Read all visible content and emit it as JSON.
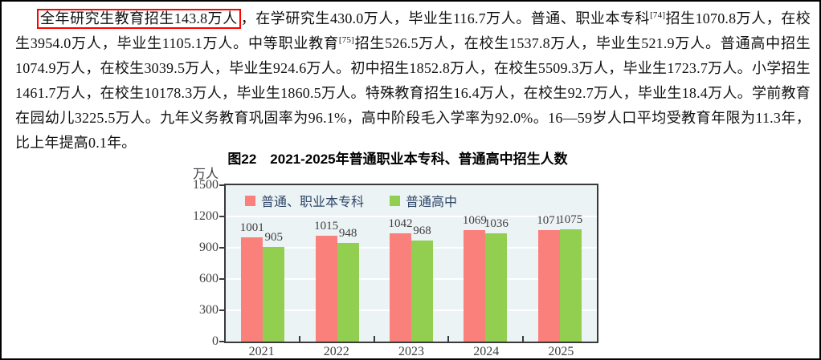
{
  "document": {
    "paragraph": {
      "highlighted": "全年研究生教育招生143.8万人",
      "after_highlight": "，在学研究生430.0万人，毕业生116.7万人。普通、职业本专科",
      "sup_1": "[74]",
      "mid": "招生1070.8万人，在校生3954.0万人，毕业生1105.1万人。中等职业教育",
      "sup_2": "[75]",
      "rest": "招生526.5万人，在校生1537.8万人，毕业生521.9万人。普通高中招生1074.9万人，在校生3039.5万人，毕业生924.6万人。初中招生1852.8万人，在校生5509.3万人，毕业生1723.7万人。小学招生1461.7万人，在校生10178.3万人，毕业生1860.5万人。特殊教育招生16.4万人，在校生92.7万人，毕业生18.4万人。学前教育在园幼儿3225.5万人。九年义务教育巩固率为96.1%，高中阶段毛入学率为92.0%。16—59岁人口平均受教育年限为11.3年，比上年提高0.1年。",
      "highlight_border_color": "#ff0000"
    }
  },
  "chart_data": {
    "type": "bar",
    "title": "图22　2021-2025年普通职业本专科、普通高中招生人数",
    "unit_label": "万人",
    "categories": [
      "2021",
      "2022",
      "2023",
      "2024",
      "2025"
    ],
    "series": [
      {
        "name": "普通、职业本专科",
        "color": "#FA807C",
        "values": [
          1001,
          1015,
          1042,
          1069,
          1071
        ]
      },
      {
        "name": "普通高中",
        "color": "#92CE50",
        "values": [
          905,
          948,
          968,
          1036,
          1075
        ]
      }
    ],
    "ylim": [
      0,
      1500
    ],
    "ytick_step": 300,
    "yticks": [
      0,
      300,
      600,
      900,
      1200,
      1500
    ],
    "grid": true,
    "grid_color": "#ffffff",
    "plot_bg": "#ECF3F4",
    "axis_color": "#3a3a3a",
    "legend_position": "top-left-inside"
  }
}
